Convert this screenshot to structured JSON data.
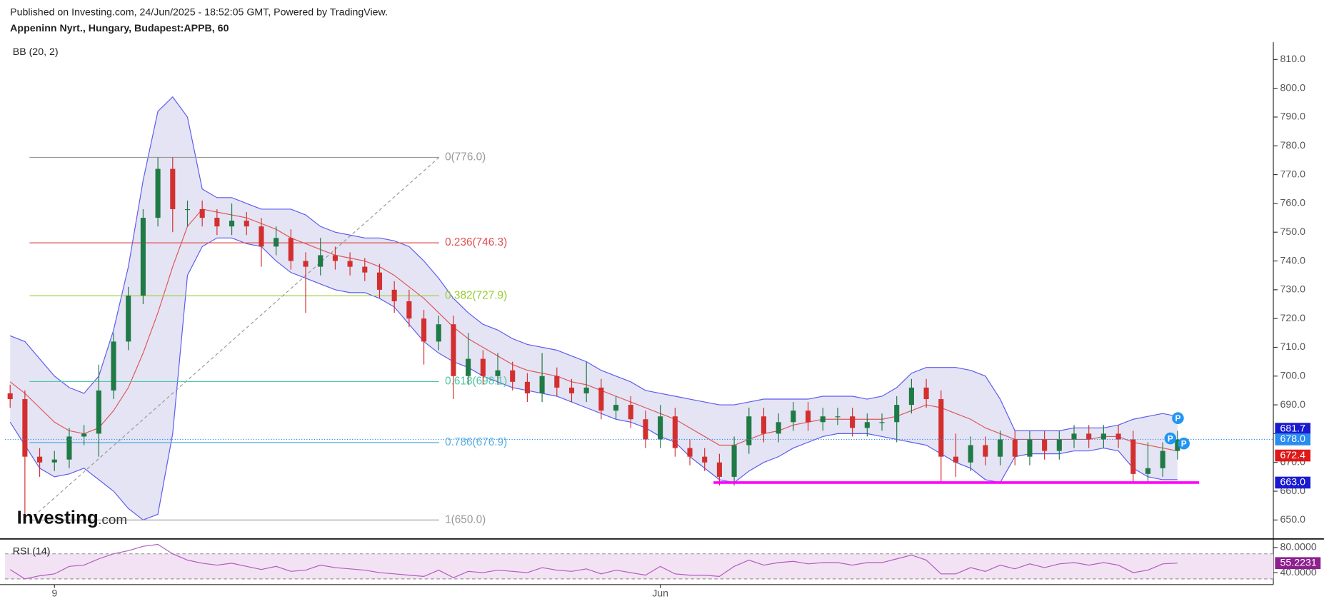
{
  "header": {
    "published": "Published on Investing.com, 24/Jun/2025 - 18:52:05 GMT, Powered by TradingView.",
    "symbol": "Appeninn Nyrt., Hungary, Budapest:APPB, 60"
  },
  "logo": {
    "brand": "Investing",
    "suffix": ".com"
  },
  "chart_data": {
    "type": "candlestick",
    "indicator_label": "BB (20, 2)",
    "categories": [
      null,
      null,
      null,
      "9",
      null,
      null,
      null,
      null,
      null,
      null,
      null,
      null,
      null,
      null,
      null,
      null,
      null,
      null,
      null,
      null,
      null,
      null,
      null,
      null,
      null,
      null,
      null,
      null,
      null,
      null,
      null,
      null,
      null,
      null,
      null,
      null,
      null,
      null,
      null,
      null,
      null,
      null,
      null,
      null,
      "Jun",
      null,
      null,
      null,
      null,
      null,
      null,
      null,
      null,
      null,
      null,
      null,
      null,
      null,
      null,
      null,
      null,
      null,
      null,
      null,
      null,
      null,
      null,
      null,
      null,
      null,
      null,
      null,
      null,
      null,
      null,
      null,
      null,
      null,
      null,
      null
    ],
    "open": [
      694,
      692,
      672,
      670,
      671,
      679,
      680,
      695,
      712,
      728,
      755,
      772,
      758,
      758,
      755,
      752,
      754,
      752,
      745,
      748,
      740,
      738,
      742,
      740,
      738,
      736,
      730,
      726,
      720,
      712,
      718,
      700,
      706,
      700,
      702,
      698,
      694,
      700,
      696,
      694,
      696,
      688,
      690,
      685,
      678,
      686,
      675,
      672,
      670,
      665,
      676,
      686,
      680,
      684,
      688,
      684,
      686,
      686,
      682,
      684,
      684,
      690,
      696,
      692,
      672,
      670,
      676,
      672,
      678,
      672,
      678,
      674,
      678,
      680,
      678,
      680,
      678,
      666,
      668,
      674
    ],
    "high": [
      697,
      695,
      675,
      674,
      682,
      683,
      704,
      715,
      731,
      758,
      776,
      776,
      761,
      761,
      758,
      760,
      757,
      755,
      752,
      751,
      743,
      748,
      745,
      743,
      741,
      739,
      733,
      730,
      723,
      721,
      721,
      715,
      709,
      708,
      705,
      701,
      708,
      703,
      699,
      705,
      699,
      693,
      693,
      688,
      690,
      689,
      678,
      675,
      673,
      679,
      689,
      689,
      687,
      691,
      691,
      689,
      689,
      689,
      687,
      687,
      693,
      699,
      699,
      695,
      680,
      679,
      679,
      681,
      681,
      681,
      681,
      681,
      683,
      683,
      683,
      683,
      681,
      677,
      677,
      681
    ],
    "low": [
      689,
      650,
      665,
      667,
      668,
      676,
      672,
      692,
      709,
      725,
      752,
      750,
      752,
      752,
      749,
      749,
      749,
      738,
      742,
      737,
      722,
      735,
      737,
      735,
      733,
      727,
      722,
      717,
      704,
      709,
      692,
      697,
      697,
      697,
      695,
      691,
      691,
      693,
      691,
      691,
      685,
      685,
      682,
      675,
      675,
      672,
      669,
      667,
      662,
      662,
      673,
      677,
      677,
      681,
      681,
      681,
      683,
      679,
      679,
      681,
      677,
      687,
      689,
      663,
      665,
      667,
      669,
      669,
      669,
      669,
      671,
      671,
      675,
      675,
      675,
      675,
      663,
      663,
      665,
      671
    ],
    "close": [
      692,
      672,
      670,
      671,
      679,
      680,
      695,
      712,
      728,
      755,
      772,
      758,
      758,
      755,
      752,
      754,
      752,
      745,
      748,
      740,
      738,
      742,
      740,
      738,
      736,
      730,
      726,
      720,
      712,
      718,
      700,
      706,
      700,
      702,
      698,
      694,
      700,
      696,
      694,
      696,
      688,
      690,
      685,
      678,
      686,
      675,
      672,
      670,
      665,
      676,
      686,
      680,
      684,
      688,
      684,
      686,
      686,
      682,
      684,
      684,
      690,
      696,
      692,
      672,
      670,
      676,
      672,
      678,
      672,
      678,
      674,
      678,
      680,
      678,
      680,
      678,
      666,
      668,
      674,
      678
    ],
    "up_color": "#1f7a45",
    "down_color": "#d32f2f",
    "bands": {
      "upper_color": "#5b5bf0",
      "middle_color": "#e05555",
      "fill": "#e4e4f4",
      "upper": [
        714,
        712,
        706,
        700,
        696,
        694,
        700,
        716,
        738,
        768,
        792,
        797,
        790,
        765,
        762,
        762,
        760,
        758,
        758,
        758,
        756,
        752,
        750,
        749,
        748,
        748,
        747,
        745,
        740,
        734,
        727,
        722,
        718,
        716,
        713,
        711,
        710,
        709,
        707,
        705,
        702,
        700,
        698,
        695,
        694,
        693,
        692,
        691,
        690,
        690,
        691,
        692,
        692,
        692,
        692,
        693,
        693,
        693,
        692,
        693,
        696,
        701,
        703,
        703,
        703,
        702,
        700,
        692,
        681,
        681,
        681,
        681,
        682,
        682,
        682,
        683,
        685,
        686,
        687,
        686
      ],
      "middle": [
        698,
        694,
        689,
        684,
        681,
        680,
        682,
        688,
        696,
        708,
        722,
        738,
        752,
        758,
        757,
        756,
        755,
        753,
        751,
        748,
        746,
        744,
        742,
        741,
        740,
        738,
        735,
        731,
        727,
        722,
        717,
        713,
        710,
        707,
        704,
        702,
        701,
        700,
        698,
        697,
        695,
        693,
        691,
        689,
        687,
        685,
        682,
        679,
        676,
        676,
        678,
        680,
        681,
        683,
        684,
        685,
        685,
        685,
        685,
        685,
        686,
        688,
        690,
        689,
        687,
        685,
        682,
        680,
        678,
        678,
        678,
        678,
        678,
        678,
        679,
        679,
        677,
        676,
        675,
        674
      ],
      "lower": [
        684,
        676,
        668,
        665,
        666,
        668,
        664,
        660,
        654,
        650,
        652,
        680,
        735,
        745,
        748,
        748,
        746,
        745,
        740,
        736,
        734,
        732,
        730,
        729,
        729,
        727,
        724,
        718,
        712,
        708,
        705,
        703,
        700,
        698,
        696,
        695,
        694,
        693,
        691,
        689,
        687,
        685,
        684,
        682,
        679,
        677,
        672,
        668,
        664,
        663,
        667,
        670,
        672,
        675,
        677,
        679,
        680,
        680,
        680,
        679,
        678,
        677,
        676,
        673,
        670,
        668,
        664,
        663,
        672,
        673,
        673,
        673,
        674,
        674,
        675,
        674,
        668,
        665,
        664,
        664
      ]
    },
    "fib": {
      "line_color": "#999999",
      "levels": [
        {
          "value": 776.0,
          "label": "0(776.0)",
          "color": "#999999"
        },
        {
          "value": 746.3,
          "label": "0.236(746.3)",
          "color": "#e05050"
        },
        {
          "value": 727.9,
          "label": "0.382(727.9)",
          "color": "#9acb2f"
        },
        {
          "value": 698.1,
          "label": "0.618(698.1)",
          "color": "#4fc7a5"
        },
        {
          "value": 676.9,
          "label": "0.786(676.9)",
          "color": "#5aaee0"
        },
        {
          "value": 650.0,
          "label": "1(650.0)",
          "color": "#999999"
        }
      ]
    },
    "support_line": {
      "value": 663.0,
      "color": "#ff00ff"
    },
    "price_labels": [
      {
        "value": 681.7,
        "label": "681.7",
        "color": "#1a1ad0",
        "dotted_line": false
      },
      {
        "value": 678.0,
        "label": "678.0",
        "color": "#2a8cf0",
        "dotted_line": true
      },
      {
        "value": 672.4,
        "label": "672.4",
        "color": "#e01818",
        "dotted_line": false
      },
      {
        "value": 663.0,
        "label": "663.0",
        "color": "#1a1ad0",
        "dotted_line": false
      }
    ],
    "event_marker_label": "P",
    "ylim": [
      644,
      816
    ],
    "yticks": [
      {
        "value": 650,
        "label": "650.0"
      },
      {
        "value": 660,
        "label": "660.0"
      },
      {
        "value": 670,
        "label": "670.0"
      },
      {
        "value": 680,
        "label": "680.0"
      },
      {
        "value": 690,
        "label": "690.0"
      },
      {
        "value": 700,
        "label": "700.0"
      },
      {
        "value": 710,
        "label": "710.0"
      },
      {
        "value": 720,
        "label": "720.0"
      },
      {
        "value": 730,
        "label": "730.0"
      },
      {
        "value": 740,
        "label": "740.0"
      },
      {
        "value": 750,
        "label": "750.0"
      },
      {
        "value": 760,
        "label": "760.0"
      },
      {
        "value": 770,
        "label": "770.0"
      },
      {
        "value": 780,
        "label": "780.0"
      },
      {
        "value": 790,
        "label": "790.0"
      },
      {
        "value": 800,
        "label": "800.0"
      },
      {
        "value": 810,
        "label": "810.0"
      }
    ],
    "rsi": {
      "label": "RSI (14)",
      "color": "#b05bc0",
      "fill": "#f3e2f3",
      "values": [
        45,
        30,
        35,
        38,
        50,
        52,
        62,
        70,
        75,
        82,
        85,
        70,
        60,
        55,
        52,
        55,
        50,
        45,
        50,
        42,
        44,
        52,
        48,
        46,
        44,
        40,
        38,
        36,
        34,
        44,
        32,
        42,
        40,
        44,
        42,
        40,
        48,
        44,
        42,
        46,
        38,
        44,
        40,
        36,
        50,
        38,
        36,
        36,
        34,
        50,
        60,
        52,
        56,
        58,
        54,
        56,
        56,
        52,
        56,
        56,
        62,
        68,
        60,
        38,
        38,
        48,
        42,
        52,
        46,
        54,
        48,
        54,
        56,
        52,
        56,
        52,
        40,
        44,
        54,
        55.2231
      ],
      "bands": [
        30,
        70
      ],
      "value_color": "#8e1f8e",
      "ylim": [
        21,
        91
      ],
      "yticks": [
        {
          "value": 80,
          "label": "80.0000"
        },
        {
          "value": 40,
          "label": "40.0000"
        }
      ]
    }
  }
}
